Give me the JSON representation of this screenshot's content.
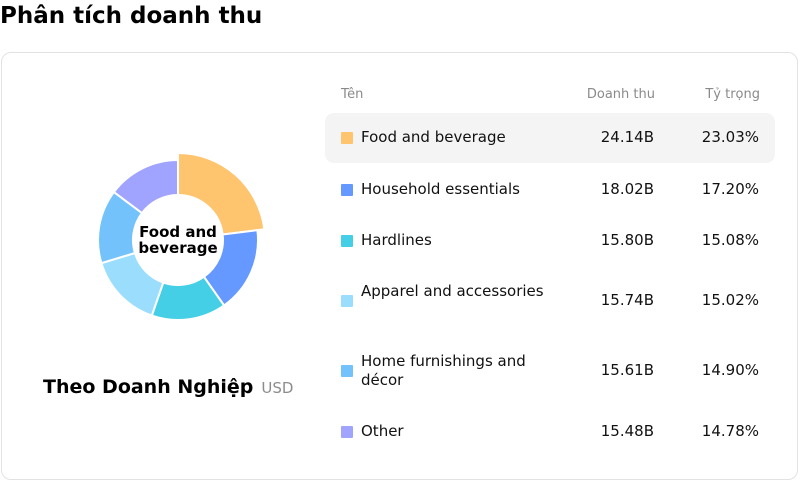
{
  "page": {
    "title": "Phân tích doanh thu"
  },
  "chart": {
    "center_label": "Food and beverage",
    "subtitle": "Theo Doanh Nghiệp",
    "unit": "USD"
  },
  "table": {
    "headers": {
      "name": "Tên",
      "revenue": "Doanh thu",
      "share": "Tỷ trọng"
    },
    "rows": [
      {
        "name": "Food and beverage",
        "revenue": "24.14B",
        "share": "23.03%"
      },
      {
        "name": "Household essentials",
        "revenue": "18.02B",
        "share": "17.20%"
      },
      {
        "name": "Hardlines",
        "revenue": "15.80B",
        "share": "15.08%"
      },
      {
        "name": "Apparel and accessories",
        "revenue": "15.74B",
        "share": "15.02%"
      },
      {
        "name": "Home furnishings and décor",
        "revenue": "15.61B",
        "share": "14.90%"
      },
      {
        "name": "Other",
        "revenue": "15.48B",
        "share": "14.78%"
      }
    ]
  },
  "chart_data": {
    "type": "pie",
    "categories": [
      "Food and beverage",
      "Household essentials",
      "Hardlines",
      "Apparel and accessories",
      "Home furnishings and décor",
      "Other"
    ],
    "values": [
      24.14,
      18.02,
      15.8,
      15.74,
      15.61,
      15.48
    ],
    "shares_pct": [
      23.03,
      17.2,
      15.08,
      15.02,
      14.9,
      14.78
    ],
    "highlighted": "Food and beverage",
    "colors": [
      "#FFC46E",
      "#6599FF",
      "#45CFE6",
      "#9BDDFD",
      "#73C2FB",
      "#A1A4FE"
    ],
    "legend": "right"
  }
}
